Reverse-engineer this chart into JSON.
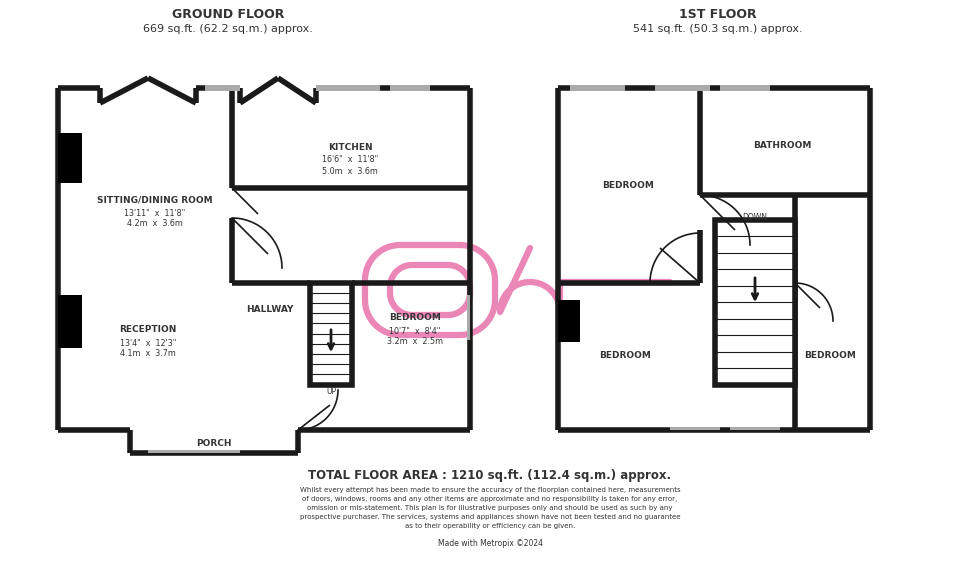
{
  "bg_color": "#ffffff",
  "wall_color": "#1a1a1a",
  "wall_lw": 4.0,
  "thin_lw": 1.2,
  "pink_color": "#e87ab0",
  "pink_lw": 4.5,
  "text_color": "#333333",
  "ground_floor_title": "GROUND FLOOR",
  "ground_floor_area": "669 sq.ft. (62.2 sq.m.) approx.",
  "first_floor_title": "1ST FLOOR",
  "first_floor_area": "541 sq.ft. (50.3 sq.m.) approx.",
  "total_area": "TOTAL FLOOR AREA : 1210 sq.ft. (112.4 sq.m.) approx.",
  "disclaimer_line1": "Whilst every attempt has been made to ensure the accuracy of the floorplan contained here, measurements",
  "disclaimer_line2": "of doors, windows, rooms and any other items are approximate and no responsibility is taken for any error,",
  "disclaimer_line3": "omission or mis-statement. This plan is for illustrative purposes only and should be used as such by any",
  "disclaimer_line4": "prospective purchaser. The services, systems and appliances shown have not been tested and no guarantee",
  "disclaimer_line5": "as to their operability or efficiency can be given.",
  "made_with": "Made with Metropix ©2024"
}
